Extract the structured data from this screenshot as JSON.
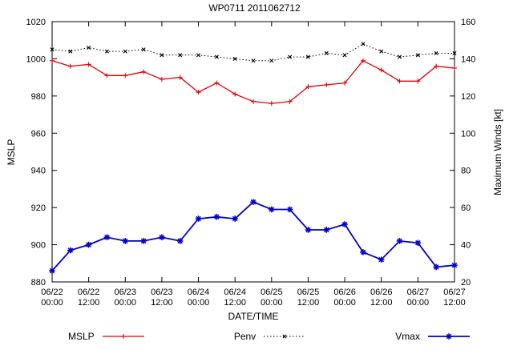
{
  "title": "WP0711 2011062712",
  "axes": {
    "left_label": "MSLP",
    "right_label": "Maximum Winds [kt]",
    "x_label": "DATE/TIME",
    "left_ticks": [
      880,
      900,
      920,
      940,
      960,
      980,
      1000,
      1020
    ],
    "right_ticks": [
      20,
      40,
      60,
      80,
      100,
      120,
      140,
      160
    ],
    "x_ticks": [
      {
        "hours": 0,
        "date": "06/22",
        "time": "00:00"
      },
      {
        "hours": 12,
        "date": "06/22",
        "time": "12:00"
      },
      {
        "hours": 24,
        "date": "06/23",
        "time": "00:00"
      },
      {
        "hours": 36,
        "date": "06/23",
        "time": "12:00"
      },
      {
        "hours": 48,
        "date": "06/24",
        "time": "00:00"
      },
      {
        "hours": 60,
        "date": "06/24",
        "time": "12:00"
      },
      {
        "hours": 72,
        "date": "06/25",
        "time": "00:00"
      },
      {
        "hours": 84,
        "date": "06/25",
        "time": "12:00"
      },
      {
        "hours": 96,
        "date": "06/26",
        "time": "00:00"
      },
      {
        "hours": 108,
        "date": "06/26",
        "time": "12:00"
      },
      {
        "hours": 120,
        "date": "06/27",
        "time": "00:00"
      },
      {
        "hours": 132,
        "date": "06/27",
        "time": "12:00"
      }
    ]
  },
  "chart_data": {
    "type": "line",
    "x_range": [
      0,
      132
    ],
    "left_range": [
      880,
      1020
    ],
    "right_range": [
      20,
      160
    ],
    "x_hours": [
      0,
      6,
      12,
      18,
      24,
      30,
      36,
      42,
      48,
      54,
      60,
      66,
      72,
      78,
      84,
      90,
      96,
      102,
      108,
      114,
      120,
      126,
      132
    ],
    "series": [
      {
        "name": "MSLP",
        "axis": "left",
        "color": "#e60000",
        "marker": "plus",
        "style": "solid",
        "width": 1.3,
        "values": [
          999,
          996,
          997,
          991,
          991,
          993,
          989,
          990,
          982,
          987,
          981,
          977,
          976,
          977,
          985,
          986,
          987,
          999,
          994,
          988,
          988,
          996,
          995
        ]
      },
      {
        "name": "Penv",
        "axis": "left",
        "color": "#000000",
        "marker": "x",
        "style": "dotted",
        "width": 1,
        "values": [
          1005,
          1004,
          1006,
          1004,
          1004,
          1005,
          1002,
          1002,
          1002,
          1001,
          1000,
          999,
          999,
          1001,
          1001,
          1003,
          1002,
          1008,
          1004,
          1001,
          1002,
          1003,
          1003
        ]
      },
      {
        "name": "Vmax",
        "axis": "right",
        "color": "#0000cd",
        "marker": "star",
        "style": "solid",
        "width": 1.8,
        "values": [
          26,
          37,
          40,
          44,
          42,
          42,
          44,
          42,
          54,
          55,
          54,
          63,
          59,
          59,
          48,
          48,
          51,
          36,
          32,
          42,
          41,
          28,
          29
        ]
      }
    ]
  }
}
